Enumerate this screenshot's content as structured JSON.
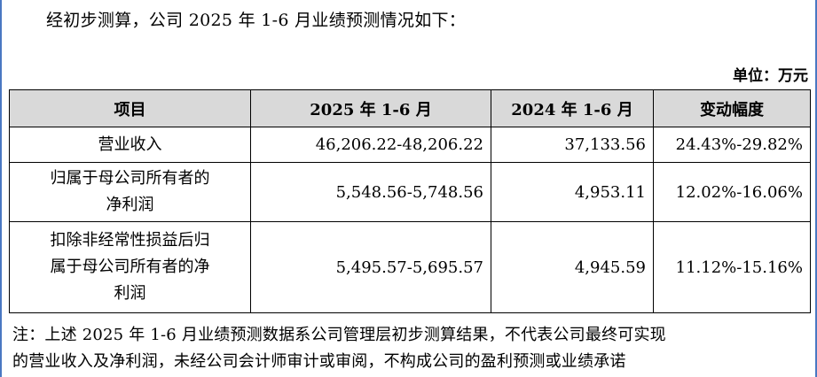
{
  "intro_text": "经初步测算，公司 2025 年 1-6 月业绩预测情况如下：",
  "unit_label": "单位：万元",
  "table": {
    "headers": [
      "项目",
      "2025 年 1-6 月",
      "2024 年 1-6 月",
      "变动幅度"
    ],
    "rows": [
      {
        "item_lines": [
          "营业收入"
        ],
        "value_2025": "46,206.22-48,206.22",
        "value_2024": "37,133.56",
        "change": "24.43%-29.82%"
      },
      {
        "item_lines": [
          "归属于母公司所有者的",
          "净利润"
        ],
        "value_2025": "5,548.56-5,748.56",
        "value_2024": "4,953.11",
        "change": "12.02%-16.06%"
      },
      {
        "item_lines": [
          "扣除非经常性损益后归",
          "属于母公司所有者的净",
          "利润"
        ],
        "value_2025": "5,495.57-5,695.57",
        "value_2024": "4,945.59",
        "change": "11.12%-15.16%"
      }
    ]
  },
  "note_lines": [
    "注：上述 2025 年 1-6 月业绩预测数据系公司管理层初步测算结果，不代表公司最终可实现",
    "的营业收入及净利润，未经公司会计师审计或审阅，不构成公司的盈利预测或业绩承诺"
  ]
}
